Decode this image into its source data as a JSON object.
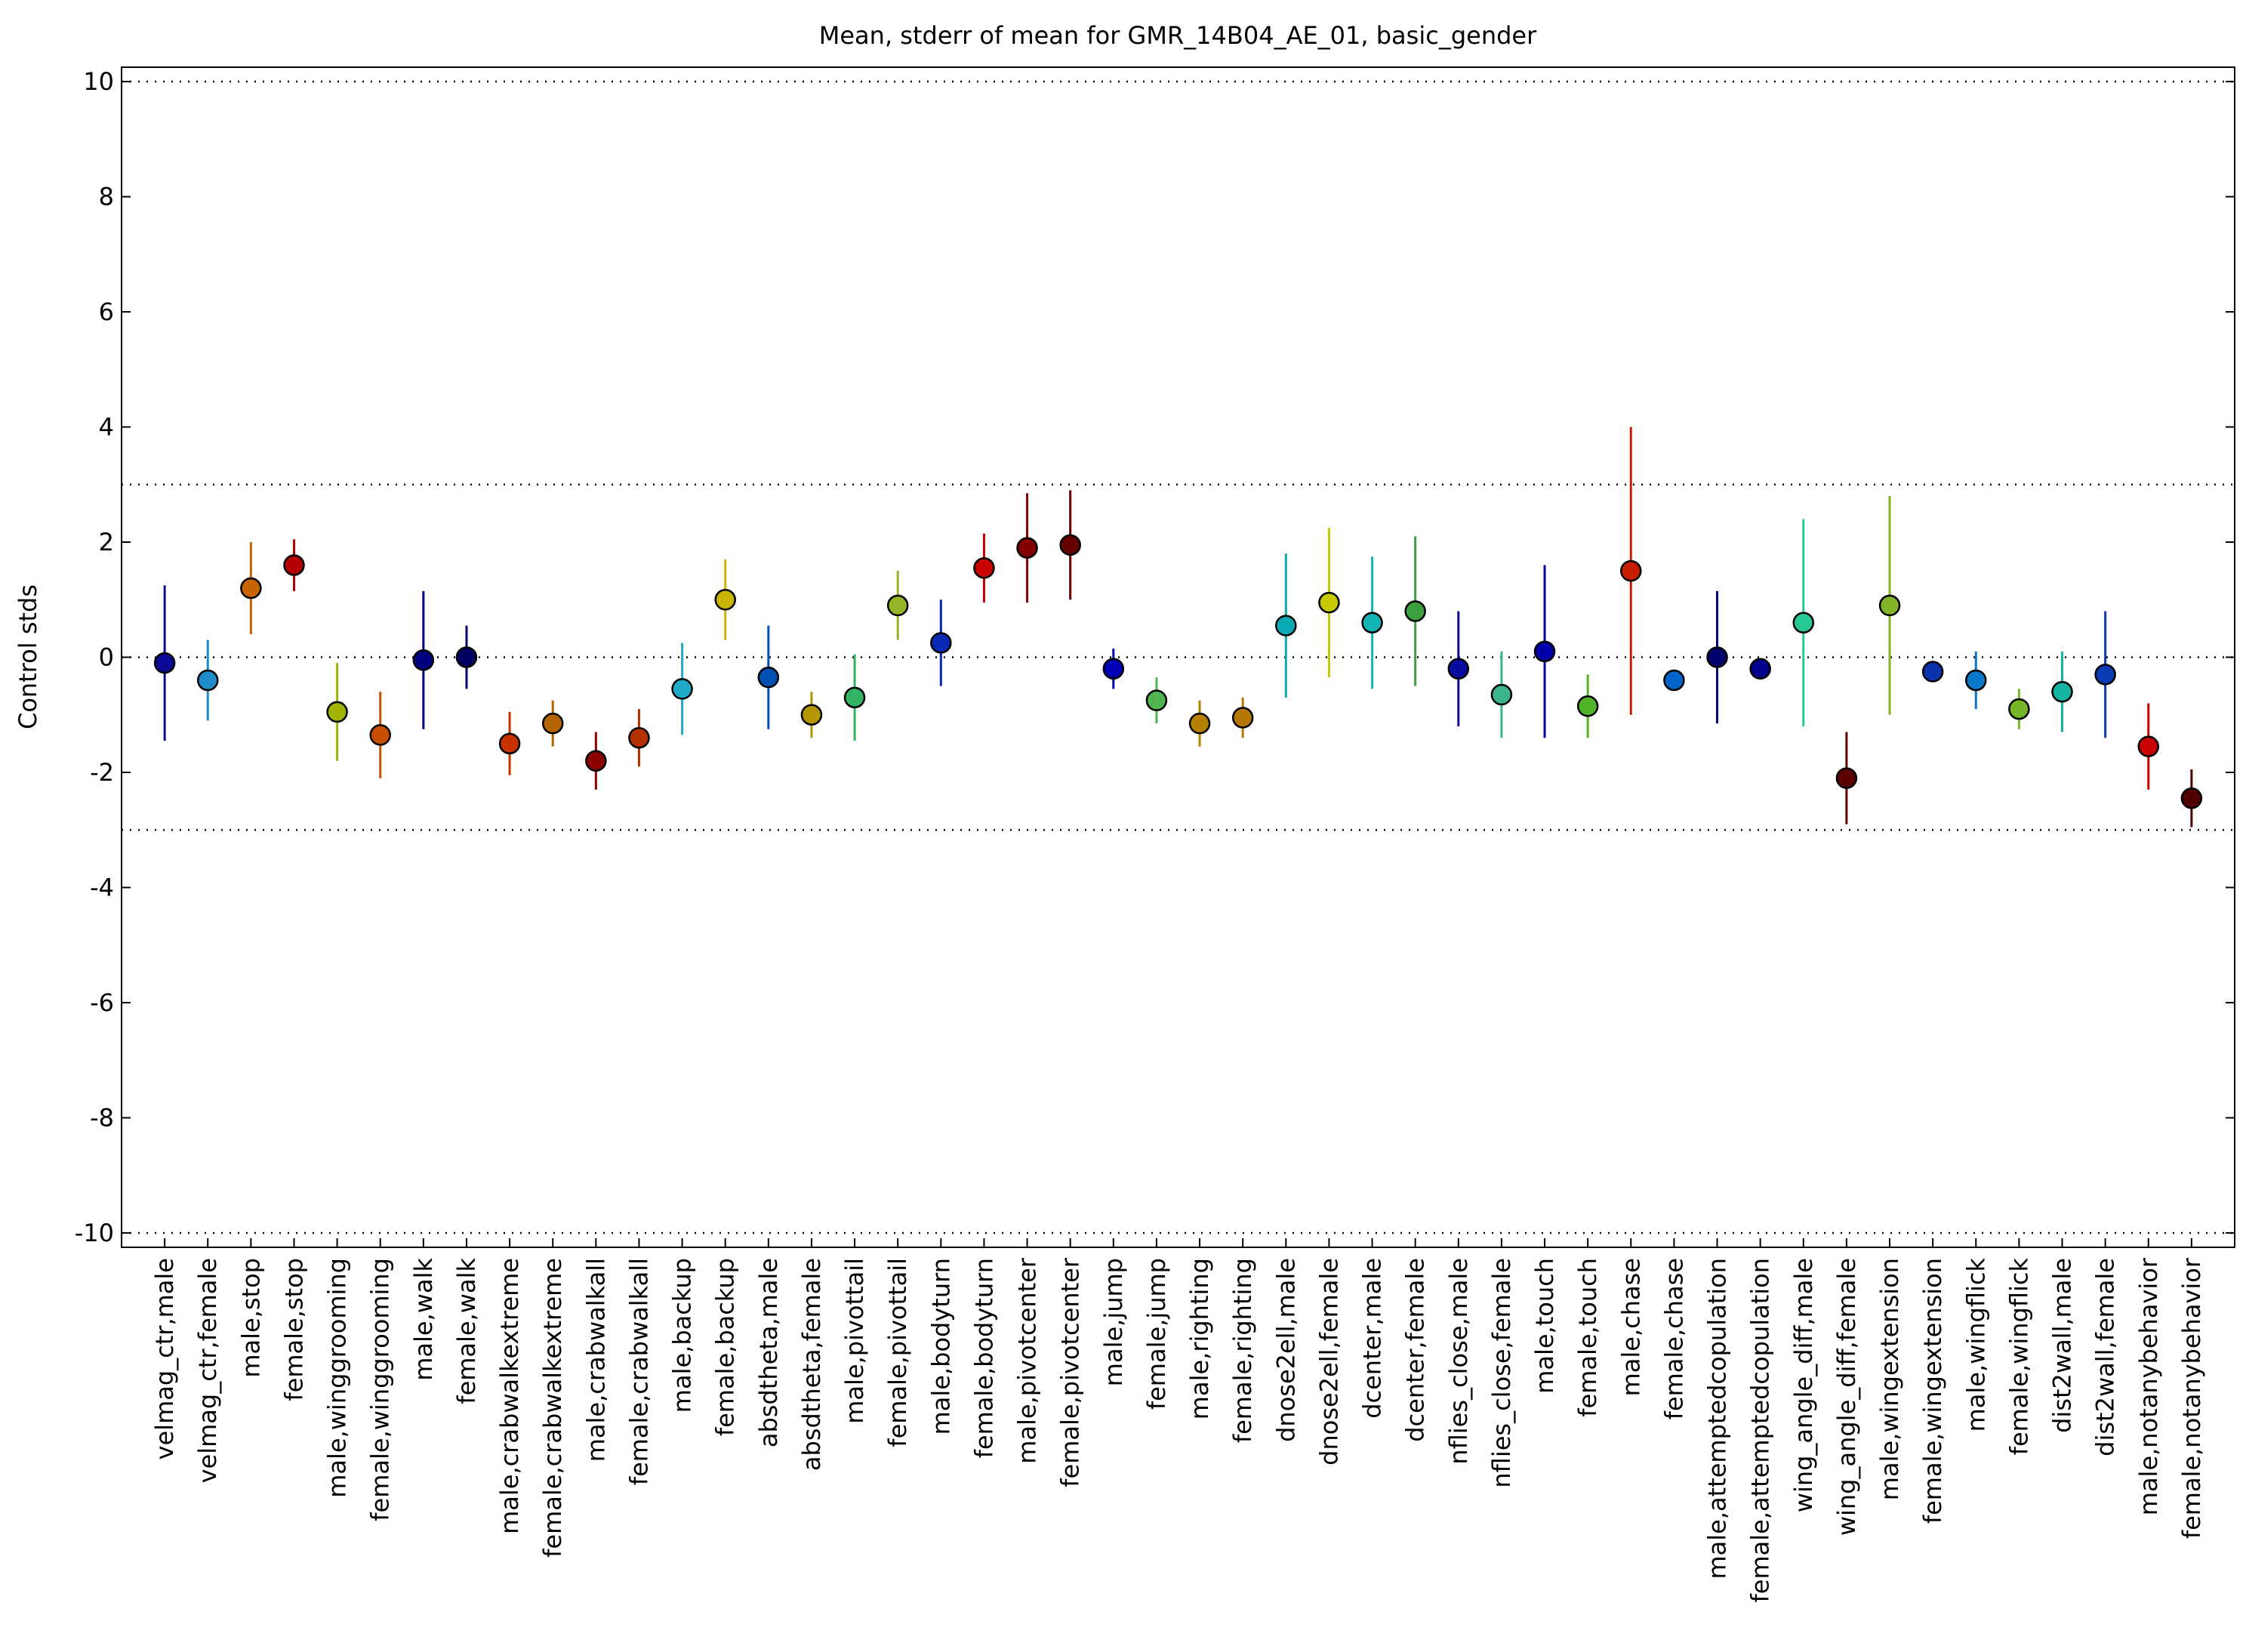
{
  "chart_data": {
    "type": "errorbar",
    "title": "Mean, stderr of mean for GMR_14B04_AE_01, basic_gender",
    "ylabel": "Control stds",
    "categories": [
      "velmag_ctr,male",
      "velmag_ctr,female",
      "male,stop",
      "female,stop",
      "male,winggrooming",
      "female,winggrooming",
      "male,walk",
      "female,walk",
      "male,crabwalkextreme",
      "female,crabwalkextreme",
      "male,crabwalkall",
      "female,crabwalkall",
      "male,backup",
      "female,backup",
      "absdtheta,male",
      "absdtheta,female",
      "male,pivottail",
      "female,pivottail",
      "male,bodyturn",
      "female,bodyturn",
      "male,pivotcenter",
      "female,pivotcenter",
      "male,jump",
      "female,jump",
      "male,righting",
      "female,righting",
      "dnose2ell,male",
      "dnose2ell,female",
      "dcenter,male",
      "dcenter,female",
      "nflies_close,male",
      "nflies_close,female",
      "male,touch",
      "female,touch",
      "male,chase",
      "female,chase",
      "male,attemptedcopulation",
      "female,attemptedcopulation",
      "wing_angle_diff,male",
      "wing_angle_diff,female",
      "male,wingextension",
      "female,wingextension",
      "male,wingflick",
      "female,wingflick",
      "dist2wall,male",
      "dist2wall,female",
      "male,notanybehavior",
      "female,notanybehavior"
    ],
    "values": [
      -0.1,
      -0.4,
      1.2,
      1.6,
      -0.95,
      -1.35,
      -0.05,
      0.0,
      -1.5,
      -1.15,
      -1.8,
      -1.4,
      -0.55,
      1.0,
      -0.35,
      -1.0,
      -0.7,
      0.9,
      0.25,
      1.55,
      1.9,
      1.95,
      -0.2,
      -0.75,
      -1.15,
      -1.05,
      0.55,
      0.95,
      0.6,
      0.8,
      -0.2,
      -0.65,
      0.1,
      -0.85,
      1.5,
      -0.4,
      0.0,
      -0.2,
      0.6,
      -2.1,
      0.9,
      -0.25,
      -0.4,
      -0.9,
      -0.6,
      -0.3,
      -1.55,
      -2.45
    ],
    "errors": [
      1.35,
      0.7,
      0.8,
      0.45,
      0.85,
      0.75,
      1.2,
      0.55,
      0.55,
      0.4,
      0.5,
      0.5,
      0.8,
      0.7,
      0.9,
      0.4,
      0.75,
      0.6,
      0.75,
      0.6,
      0.95,
      0.95,
      0.35,
      0.4,
      0.4,
      0.35,
      1.25,
      1.3,
      1.15,
      1.3,
      1.0,
      0.75,
      1.5,
      0.55,
      2.5,
      0.15,
      1.15,
      0.1,
      1.8,
      0.8,
      1.9,
      0.1,
      0.5,
      0.35,
      0.7,
      1.1,
      0.75,
      0.5
    ],
    "colors": [
      "#0a0a96",
      "#1e8cc8",
      "#c86400",
      "#b40000",
      "#a0b400",
      "#c85000",
      "#000080",
      "#000060",
      "#c83200",
      "#b46400",
      "#8c0000",
      "#b43200",
      "#1eaac8",
      "#c8b400",
      "#0050b4",
      "#b49600",
      "#32b464",
      "#96b428",
      "#0a28b4",
      "#c80000",
      "#820000",
      "#640000",
      "#0000b4",
      "#50b450",
      "#b48200",
      "#b47800",
      "#0aaab4",
      "#c8c800",
      "#14b4b4",
      "#3ca03c",
      "#0a0aa0",
      "#3cb48c",
      "#0000aa",
      "#50b428",
      "#c81e00",
      "#0064c8",
      "#00006e",
      "#00008c",
      "#28c896",
      "#5a0000",
      "#82b428",
      "#0a32aa",
      "#0a78c8",
      "#78b428",
      "#14b4a0",
      "#0a3cb4",
      "#c80000",
      "#500000"
    ],
    "ylim": [
      -10.25,
      10.25
    ],
    "yticks": [
      -10,
      -8,
      -6,
      -4,
      -2,
      0,
      2,
      4,
      6,
      8,
      10
    ],
    "hlines": [
      10,
      3,
      0,
      -3,
      -10
    ]
  }
}
